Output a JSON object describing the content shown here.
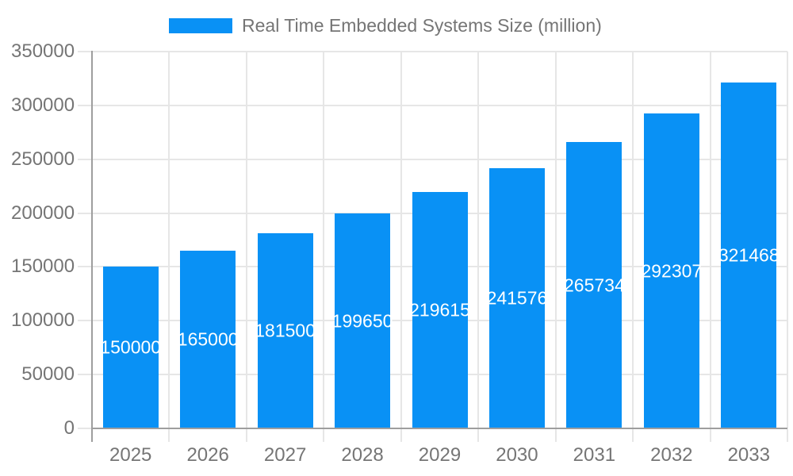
{
  "chart_data": {
    "type": "bar",
    "title": "",
    "legend": {
      "position": "top",
      "entries": [
        "Real Time Embedded Systems Size (million)"
      ]
    },
    "categories": [
      "2025",
      "2026",
      "2027",
      "2028",
      "2029",
      "2030",
      "2031",
      "2032",
      "2033"
    ],
    "values": [
      150000,
      165000,
      181500,
      199650,
      219615,
      241576,
      265734,
      292307,
      321468
    ],
    "value_labels": [
      "150000",
      "165000",
      "181500",
      "199650",
      "219615",
      "241576",
      "265734",
      "292307",
      "321468"
    ],
    "xlabel": "",
    "ylabel": "",
    "ylim": [
      0,
      350000
    ],
    "y_ticks": [
      0,
      50000,
      100000,
      150000,
      200000,
      250000,
      300000,
      350000
    ],
    "grid": true,
    "colors": {
      "bar": "#0991f5",
      "axis_text": "#757575",
      "grid_line": "#e6e6e6",
      "axis_line": "#9e9e9e",
      "value_label": "#ffffff",
      "background": "#ffffff"
    }
  }
}
